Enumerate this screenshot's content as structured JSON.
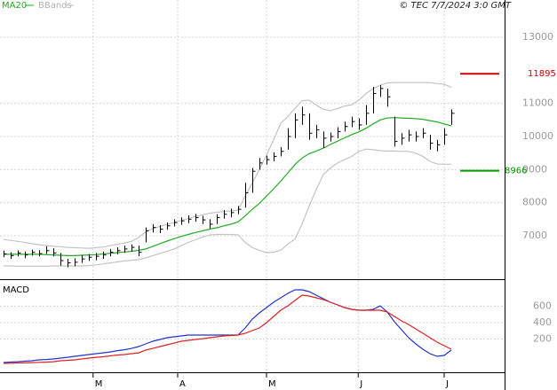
{
  "chart_data": [
    {
      "type": "ohlc",
      "source": "© TEC 7/7/2024 3:0 GMT",
      "bar_color": "#000000",
      "close": [
        6450,
        6400,
        6480,
        6420,
        6500,
        6460,
        6550,
        6480,
        6250,
        6180,
        6200,
        6300,
        6350,
        6380,
        6420,
        6500,
        6550,
        6600,
        6650,
        6500,
        7150,
        7250,
        7200,
        7300,
        7400,
        7450,
        7500,
        7550,
        7480,
        7350,
        7550,
        7650,
        7700,
        7800,
        8300,
        8950,
        9200,
        9300,
        9400,
        9550,
        10000,
        10500,
        10650,
        10100,
        10200,
        9950,
        10000,
        10150,
        10300,
        10450,
        10350,
        10700,
        11300,
        11450,
        11200,
        9850,
        9950,
        10050,
        10000,
        10100,
        9800,
        9750,
        10050,
        10700
      ],
      "high": [
        6550,
        6500,
        6560,
        6520,
        6580,
        6560,
        6680,
        6620,
        6480,
        6300,
        6320,
        6420,
        6450,
        6480,
        6520,
        6600,
        6650,
        6700,
        6740,
        6700,
        7250,
        7350,
        7320,
        7400,
        7500,
        7560,
        7620,
        7660,
        7600,
        7500,
        7650,
        7780,
        7820,
        7900,
        8600,
        9050,
        9350,
        9420,
        9520,
        9680,
        10250,
        10700,
        10900,
        10700,
        10350,
        10150,
        10120,
        10280,
        10450,
        10600,
        10550,
        10950,
        11500,
        11550,
        11450,
        10600,
        10100,
        10200,
        10150,
        10250,
        10050,
        9900,
        10250,
        10820
      ],
      "low": [
        6350,
        6300,
        6380,
        6320,
        6400,
        6380,
        6450,
        6380,
        6100,
        6050,
        6080,
        6180,
        6240,
        6260,
        6300,
        6380,
        6440,
        6480,
        6520,
        6380,
        6800,
        7100,
        7080,
        7180,
        7280,
        7330,
        7380,
        7420,
        7350,
        7220,
        7350,
        7520,
        7560,
        7650,
        7850,
        8300,
        9000,
        9150,
        9250,
        9400,
        9600,
        9950,
        10350,
        9900,
        9950,
        9650,
        9850,
        9950,
        10150,
        10280,
        10200,
        10350,
        10700,
        11200,
        10900,
        9700,
        9750,
        9850,
        9850,
        9950,
        9600,
        9550,
        9750,
        10350
      ],
      "series": [
        {
          "name": "MA20",
          "color": "#22aa22",
          "values": [
            6440,
            6440,
            6440,
            6440,
            6440,
            6440,
            6430,
            6420,
            6410,
            6400,
            6400,
            6410,
            6420,
            6430,
            6450,
            6470,
            6490,
            6510,
            6530,
            6560,
            6600,
            6680,
            6760,
            6840,
            6910,
            6980,
            7040,
            7100,
            7150,
            7200,
            7240,
            7300,
            7350,
            7420,
            7600,
            7800,
            7980,
            8200,
            8420,
            8650,
            8900,
            9150,
            9350,
            9480,
            9560,
            9650,
            9760,
            9860,
            9960,
            10060,
            10140,
            10250,
            10380,
            10500,
            10560,
            10570,
            10560,
            10550,
            10540,
            10520,
            10480,
            10440,
            10380,
            10320
          ]
        },
        {
          "name": "BBands",
          "color": "#c4c4c4",
          "values": [
            6890,
            6860,
            6830,
            6800,
            6760,
            6730,
            6700,
            6680,
            6670,
            6650,
            6640,
            6630,
            6620,
            6640,
            6660,
            6700,
            6740,
            6780,
            6830,
            6950,
            7120,
            7220,
            7280,
            7340,
            7400,
            7460,
            7520,
            7580,
            7630,
            7680,
            7710,
            7730,
            7750,
            7780,
            8200,
            8600,
            9000,
            9440,
            9900,
            10400,
            10600,
            10850,
            11080,
            11100,
            10950,
            10820,
            10780,
            10850,
            10920,
            10960,
            11100,
            11300,
            11450,
            11550,
            11620,
            11630,
            11630,
            11630,
            11630,
            11630,
            11630,
            11600,
            11580,
            11480
          ],
          "lower": [
            6090,
            6090,
            6080,
            6080,
            6080,
            6080,
            6080,
            6090,
            6090,
            6090,
            6090,
            6090,
            6100,
            6120,
            6150,
            6180,
            6210,
            6240,
            6260,
            6280,
            6330,
            6400,
            6460,
            6530,
            6600,
            6700,
            6800,
            6880,
            6960,
            7020,
            7040,
            7040,
            7040,
            7030,
            6800,
            6640,
            6560,
            6490,
            6500,
            6560,
            6750,
            6900,
            7350,
            7900,
            8400,
            8850,
            9050,
            9200,
            9300,
            9400,
            9550,
            9620,
            9600,
            9570,
            9560,
            9560,
            9550,
            9550,
            9500,
            9400,
            9250,
            9170,
            9160,
            9160
          ]
        }
      ],
      "levels": [
        {
          "value": 11895,
          "color": "#cc0000"
        },
        {
          "value": 8966,
          "color": "#009900"
        }
      ],
      "ylim": [
        5687,
        14125
      ],
      "yticks": [
        7000,
        8000,
        9000,
        10000,
        11000,
        13000
      ],
      "grid": true
    },
    {
      "type": "line",
      "title": "MACD",
      "series": [
        {
          "color": "#2233cc",
          "values": [
            -86,
            -81,
            -76,
            -70,
            -65,
            -54,
            -49,
            -43,
            -32,
            -22,
            -11,
            0,
            11,
            22,
            32,
            43,
            59,
            70,
            86,
            108,
            141,
            173,
            195,
            216,
            227,
            238,
            249,
            249,
            249,
            249,
            249,
            249,
            249,
            249,
            335,
            443,
            519,
            584,
            649,
            703,
            757,
            800,
            800,
            778,
            735,
            692,
            649,
            616,
            584,
            562,
            551,
            551,
            562,
            605,
            530,
            411,
            314,
            216,
            141,
            76,
            22,
            -11,
            0,
            65
          ]
        },
        {
          "color": "#dd2222",
          "values": [
            -97,
            -95,
            -92,
            -90,
            -87,
            -84,
            -81,
            -76,
            -65,
            -59,
            -54,
            -43,
            -32,
            -22,
            -16,
            -5,
            5,
            11,
            22,
            32,
            65,
            86,
            108,
            130,
            151,
            173,
            184,
            195,
            205,
            216,
            227,
            238,
            243,
            249,
            270,
            303,
            335,
            400,
            476,
            551,
            605,
            670,
            735,
            724,
            703,
            681,
            649,
            616,
            584,
            562,
            551,
            551,
            551,
            551,
            530,
            476,
            422,
            378,
            324,
            270,
            216,
            162,
            119,
            76
          ]
        }
      ],
      "ylim": [
        -205,
        919
      ],
      "yticks": [
        200,
        400,
        600
      ],
      "xticks": [
        {
          "value": 12.6,
          "label": "M"
        },
        {
          "value": 24.5,
          "label": "A"
        },
        {
          "value": 37,
          "label": "M"
        },
        {
          "value": 49.9,
          "label": "J"
        },
        {
          "value": 62,
          "label": "J"
        }
      ],
      "grid": true
    }
  ]
}
